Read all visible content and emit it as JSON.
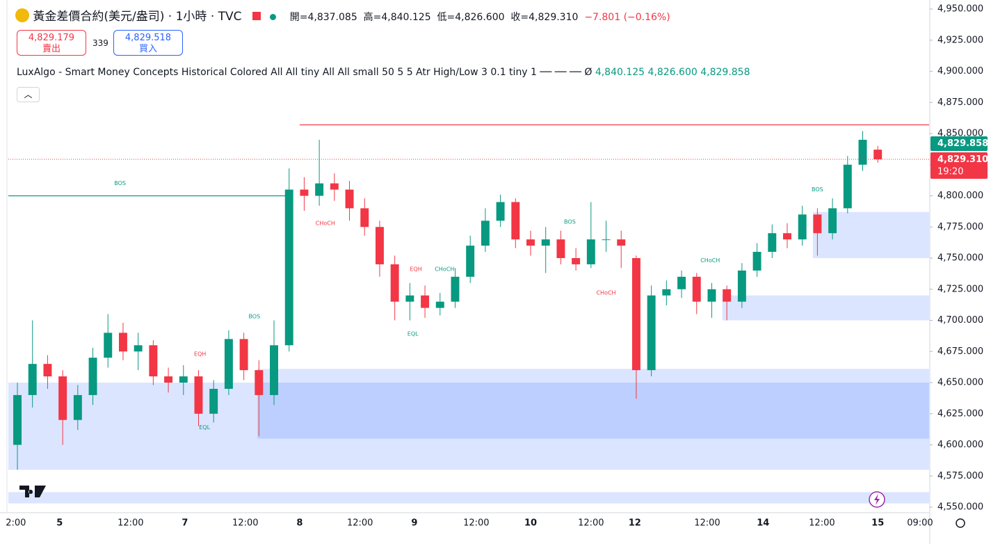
{
  "header": {
    "title": "黃金差價合約(美元/盎司) · 1小時 · TVC",
    "open": "開=4,837.085",
    "high": "高=4,840.125",
    "low": "低=4,826.600",
    "close": "收=4,829.310",
    "change": "−7.801 (−0.16%)",
    "sell_price": "4,829.179",
    "sell_label": "賣出",
    "spread": "339",
    "buy_price": "4,829.518",
    "buy_label": "買入",
    "indicator": "LuxAlgo - Smart Money Concepts Historical Colored All All tiny All All small 50 5 5 Atr High/Low 3 0.1 tiny 1 ── ── ──  Ø",
    "indicator_values": [
      "4,840.125",
      "4,826.600",
      "4,829.858"
    ]
  },
  "chart_data": {
    "type": "candlestick",
    "up_color": "#089981",
    "down_color": "#f23645",
    "open": [
      4600,
      4640,
      4665,
      4655,
      4620,
      4640,
      4670,
      4690,
      4675,
      4680,
      4655,
      4650,
      4655,
      4625,
      4645,
      4685,
      4660,
      4640,
      4680,
      4805,
      4800,
      4810,
      4805,
      4790,
      4775,
      4745,
      4715,
      4720,
      4710,
      4715,
      4735,
      4760,
      4780,
      4795,
      4765,
      4760,
      4765,
      4750,
      4745,
      4765,
      4765,
      4750,
      4660,
      4720,
      4725,
      4735,
      4715,
      4725,
      4715,
      4740,
      4755,
      4770,
      4765,
      4785,
      4770,
      4790,
      4825,
      4837.085
    ],
    "high": [
      4650,
      4700,
      4672,
      4660,
      4648,
      4678,
      4705,
      4698,
      4690,
      4684,
      4662,
      4664,
      4660,
      4652,
      4692,
      4690,
      4668,
      4700,
      4822,
      4815,
      4845,
      4818,
      4812,
      4798,
      4780,
      4752,
      4730,
      4728,
      4722,
      4742,
      4768,
      4790,
      4801,
      4798,
      4772,
      4775,
      4772,
      4758,
      4795,
      4780,
      4772,
      4752,
      4728,
      4732,
      4740,
      4738,
      4730,
      4728,
      4746,
      4762,
      4777,
      4778,
      4792,
      4790,
      4798,
      4832,
      4852,
      4840.125
    ],
    "low": [
      4580,
      4630,
      4645,
      4600,
      4612,
      4632,
      4662,
      4668,
      4660,
      4648,
      4642,
      4640,
      4615,
      4618,
      4640,
      4652,
      4607,
      4632,
      4675,
      4788,
      4792,
      4796,
      4780,
      4768,
      4735,
      4700,
      4700,
      4702,
      4704,
      4710,
      4730,
      4755,
      4775,
      4758,
      4752,
      4738,
      4745,
      4740,
      4742,
      4755,
      4742,
      4637,
      4655,
      4712,
      4718,
      4705,
      4702,
      4700,
      4710,
      4735,
      4750,
      4758,
      4760,
      4752,
      4765,
      4786,
      4820,
      4826.6
    ],
    "close": [
      4640,
      4665,
      4655,
      4620,
      4640,
      4670,
      4690,
      4675,
      4680,
      4655,
      4650,
      4655,
      4625,
      4645,
      4685,
      4660,
      4640,
      4680,
      4805,
      4800,
      4810,
      4805,
      4790,
      4775,
      4745,
      4715,
      4720,
      4710,
      4715,
      4735,
      4760,
      4780,
      4795,
      4765,
      4760,
      4765,
      4750,
      4745,
      4765,
      4765,
      4760,
      4660,
      4720,
      4725,
      4735,
      4715,
      4725,
      4715,
      4740,
      4755,
      4770,
      4765,
      4785,
      4770,
      4790,
      4825,
      4845,
      4829.31
    ],
    "xlim": [
      -0.6,
      60.4
    ],
    "xticks": [
      {
        "value": -0.1,
        "label": "2:00"
      },
      {
        "value": 2.8,
        "label": "5"
      },
      {
        "value": 7.5,
        "label": "12:00"
      },
      {
        "value": 11.1,
        "label": "7"
      },
      {
        "value": 15.1,
        "label": "12:00"
      },
      {
        "value": 18.7,
        "label": "8"
      },
      {
        "value": 22.7,
        "label": "12:00"
      },
      {
        "value": 26.3,
        "label": "9"
      },
      {
        "value": 30.4,
        "label": "12:00"
      },
      {
        "value": 34,
        "label": "10"
      },
      {
        "value": 38,
        "label": "12:00"
      },
      {
        "value": 40.9,
        "label": "12"
      },
      {
        "value": 45.7,
        "label": "12:00"
      },
      {
        "value": 49.4,
        "label": "14"
      },
      {
        "value": 53.3,
        "label": "12:00"
      },
      {
        "value": 57,
        "label": "15"
      },
      {
        "value": 59.8,
        "label": "09:00"
      }
    ],
    "ylim": [
      4550,
      4950
    ],
    "yticks": [
      {
        "value": 4550,
        "label": "4,550.000"
      },
      {
        "value": 4575,
        "label": "4,575.000"
      },
      {
        "value": 4600,
        "label": "4,600.000"
      },
      {
        "value": 4625,
        "label": "4,625.000"
      },
      {
        "value": 4650,
        "label": "4,650.000"
      },
      {
        "value": 4675,
        "label": "4,675.000"
      },
      {
        "value": 4700,
        "label": "4,700.000"
      },
      {
        "value": 4725,
        "label": "4,725.000"
      },
      {
        "value": 4750,
        "label": "4,750.000"
      },
      {
        "value": 4775,
        "label": "4,775.000"
      },
      {
        "value": 4800,
        "label": "4,800.000"
      },
      {
        "value": 4825,
        "label": "4,825.000"
      },
      {
        "value": 4850,
        "label": "4,850.000"
      },
      {
        "value": 4875,
        "label": "4,875.000"
      },
      {
        "value": 4900,
        "label": "4,900.000"
      },
      {
        "value": 4925,
        "label": "4,925.000"
      },
      {
        "value": 4950,
        "label": "4,950.000"
      }
    ],
    "zones": [
      {
        "x": [
          -0.6,
          60.4
        ],
        "y": [
          4580,
          4650
        ]
      },
      {
        "x": [
          15.9,
          60.4
        ],
        "y": [
          4605,
          4661
        ]
      },
      {
        "x": [
          46.7,
          60.4
        ],
        "y": [
          4700,
          4720
        ]
      },
      {
        "x": [
          52.7,
          60.4
        ],
        "y": [
          4750,
          4787
        ]
      },
      {
        "x": [
          -0.6,
          60.4
        ],
        "y": [
          4553,
          4562
        ]
      }
    ],
    "levels": [
      {
        "y": 4800,
        "x": [
          -0.6,
          18
        ],
        "color": "#089981"
      },
      {
        "y": 4857,
        "x": [
          18.7,
          60.4
        ],
        "color": "#f23645"
      }
    ],
    "annotations": [
      {
        "text": "BOS",
        "x": 6.8,
        "y": 4810,
        "color": "#089981"
      },
      {
        "text": "CHoCH",
        "x": 20.4,
        "y": 4778,
        "color": "#f23645"
      },
      {
        "text": "BOS",
        "x": 15.7,
        "y": 4703,
        "color": "#089981"
      },
      {
        "text": "EQH",
        "x": 12.1,
        "y": 4673,
        "color": "#f23645"
      },
      {
        "text": "EQL",
        "x": 12.4,
        "y": 4614,
        "color": "#089981"
      },
      {
        "text": "EQH",
        "x": 26.4,
        "y": 4741,
        "color": "#f23645"
      },
      {
        "text": "CHoCH",
        "x": 28.3,
        "y": 4741,
        "color": "#089981"
      },
      {
        "text": "EQL",
        "x": 26.2,
        "y": 4689,
        "color": "#089981"
      },
      {
        "text": "BOS",
        "x": 36.6,
        "y": 4779,
        "color": "#089981"
      },
      {
        "text": "CHoCH",
        "x": 39,
        "y": 4722,
        "color": "#f23645"
      },
      {
        "text": "CHoCH",
        "x": 45.9,
        "y": 4748,
        "color": "#089981"
      },
      {
        "text": "BOS",
        "x": 53,
        "y": 4805,
        "color": "#089981"
      }
    ],
    "price_labels": [
      {
        "value": 4829.858,
        "label": "4,829.858",
        "color": "#089981"
      },
      {
        "value": 4829.31,
        "label": "4,829.310",
        "sub": "19:20",
        "color": "#f23645"
      }
    ]
  }
}
